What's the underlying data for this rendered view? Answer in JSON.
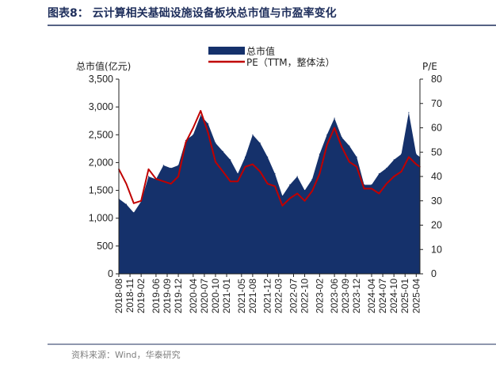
{
  "chart_data": {
    "type": "area",
    "title": "图表8： 云计算相关基础设施设备板块总市值与市盈率变化",
    "source": "资料来源：Wind，华泰研究",
    "ylabel_left": "总市值(亿元)",
    "ylabel_right": "P/E",
    "ylim_left": [
      0,
      3500
    ],
    "ylim_right": [
      0,
      80
    ],
    "yticks_left": [
      "0",
      "500",
      "1,000",
      "1,500",
      "2,000",
      "2,500",
      "3,000",
      "3,500"
    ],
    "yticks_right": [
      "0",
      "10",
      "20",
      "30",
      "40",
      "50",
      "60",
      "70",
      "80"
    ],
    "x_ticks": [
      "2018-08",
      "2018-11",
      "2019-02",
      "2019-06",
      "2019-09",
      "2019-12",
      "2020-04",
      "2020-07",
      "2020-10",
      "2021-01",
      "2021-05",
      "2021-08",
      "2021-12",
      "2022-03",
      "2022-07",
      "2022-10",
      "2023-02",
      "2023-06",
      "2023-09",
      "2023-12",
      "2024-04",
      "2024-07",
      "2024-10",
      "2025-01",
      "2025-04"
    ],
    "legend": "top-center",
    "colors": {
      "market_cap": "#15316b",
      "pe": "#c00000"
    },
    "series": [
      {
        "name": "总市值",
        "type": "area",
        "axis": "left",
        "x": [
          "2018-08",
          "2018-10",
          "2018-12",
          "2019-02",
          "2019-04",
          "2019-06",
          "2019-08",
          "2019-10",
          "2019-12",
          "2020-02",
          "2020-04",
          "2020-06",
          "2020-08",
          "2020-10",
          "2020-12",
          "2021-02",
          "2021-04",
          "2021-06",
          "2021-08",
          "2021-10",
          "2021-12",
          "2022-02",
          "2022-04",
          "2022-06",
          "2022-08",
          "2022-10",
          "2022-12",
          "2023-02",
          "2023-04",
          "2023-06",
          "2023-08",
          "2023-10",
          "2023-12",
          "2024-02",
          "2024-04",
          "2024-06",
          "2024-08",
          "2024-10",
          "2024-12",
          "2025-02",
          "2025-04",
          "2025-05"
        ],
        "values": [
          1350,
          1250,
          1100,
          1300,
          1750,
          1700,
          1950,
          1900,
          1950,
          2400,
          2500,
          2850,
          2700,
          2350,
          2200,
          2050,
          1800,
          2100,
          2500,
          2350,
          2100,
          1800,
          1400,
          1600,
          1750,
          1500,
          1700,
          2150,
          2500,
          2800,
          2450,
          2300,
          2100,
          1600,
          1600,
          1800,
          1900,
          2050,
          2150,
          2900,
          2150,
          2100
        ]
      },
      {
        "name": "PE（TTM，整体法）",
        "type": "line",
        "axis": "right",
        "x": [
          "2018-08",
          "2018-10",
          "2018-12",
          "2019-02",
          "2019-04",
          "2019-06",
          "2019-08",
          "2019-10",
          "2019-12",
          "2020-02",
          "2020-04",
          "2020-06",
          "2020-08",
          "2020-10",
          "2020-12",
          "2021-02",
          "2021-04",
          "2021-06",
          "2021-08",
          "2021-10",
          "2021-12",
          "2022-02",
          "2022-04",
          "2022-06",
          "2022-08",
          "2022-10",
          "2022-12",
          "2023-02",
          "2023-04",
          "2023-06",
          "2023-08",
          "2023-10",
          "2023-12",
          "2024-02",
          "2024-04",
          "2024-06",
          "2024-08",
          "2024-10",
          "2024-12",
          "2025-02",
          "2025-04",
          "2025-05"
        ],
        "values": [
          43,
          37,
          29,
          30,
          43,
          39,
          38,
          37,
          40,
          54,
          60,
          67,
          58,
          46,
          42,
          38,
          38,
          44,
          45,
          42,
          37,
          36,
          28,
          31,
          33,
          30,
          34,
          41,
          53,
          60,
          52,
          46,
          44,
          35,
          35,
          33,
          37,
          40,
          42,
          48,
          45,
          44
        ]
      }
    ]
  }
}
